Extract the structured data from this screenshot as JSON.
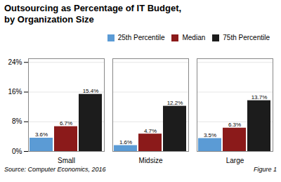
{
  "chart_data": {
    "type": "bar",
    "title": "Outsourcing as Percentage of IT Budget,\nby Organization Size",
    "categories": [
      "Small",
      "Midsize",
      "Large"
    ],
    "series": [
      {
        "name": "25th Percentile",
        "color": "#5B9BD5",
        "values": [
          3.6,
          1.6,
          3.5
        ],
        "value_labels": [
          "3.6%",
          "1.6%",
          "3.5%"
        ]
      },
      {
        "name": "Median",
        "color": "#8B1A1A",
        "values": [
          6.7,
          4.7,
          6.3
        ],
        "value_labels": [
          "6.7%",
          "4.7%",
          "6.3%"
        ]
      },
      {
        "name": "75th Percentile",
        "color": "#1C1C1C",
        "values": [
          15.4,
          12.2,
          13.7
        ],
        "value_labels": [
          "15.4%",
          "12.2%",
          "13.7%"
        ]
      }
    ],
    "ylim": [
      0,
      25
    ],
    "yticks": [
      {
        "value": 0,
        "label": "0%"
      },
      {
        "value": 8,
        "label": "8%"
      },
      {
        "value": 16,
        "label": "16%"
      },
      {
        "value": 24,
        "label": "24%"
      }
    ],
    "grid": true,
    "legend": "upper right",
    "data_labels": true,
    "annotations": [
      "Source: Computer Economics, 2016",
      "Figure 1"
    ]
  }
}
